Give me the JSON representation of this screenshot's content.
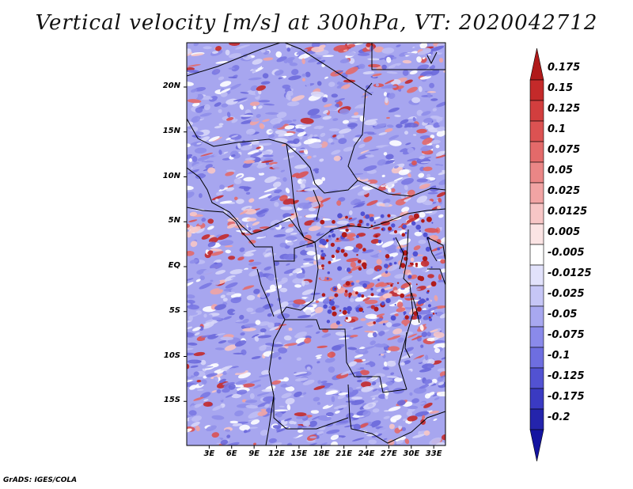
{
  "title": "Vertical velocity [m/s] at 300hPa, VT: 2020042712",
  "credit": "GrADS: IGES/COLA",
  "map": {
    "lat_range": [
      -20,
      25
    ],
    "lon_range": [
      0,
      35
    ],
    "lat_ticks": [
      {
        "value": 20,
        "label": "20N"
      },
      {
        "value": 15,
        "label": "15N"
      },
      {
        "value": 10,
        "label": "10N"
      },
      {
        "value": 5,
        "label": "5N"
      },
      {
        "value": 0,
        "label": "EQ"
      },
      {
        "value": -5,
        "label": "5S"
      },
      {
        "value": -10,
        "label": "10S"
      },
      {
        "value": -15,
        "label": "15S"
      }
    ],
    "lon_ticks": [
      {
        "value": 3,
        "label": "3E"
      },
      {
        "value": 6,
        "label": "6E"
      },
      {
        "value": 9,
        "label": "9E"
      },
      {
        "value": 12,
        "label": "12E"
      },
      {
        "value": 15,
        "label": "15E"
      },
      {
        "value": 18,
        "label": "18E"
      },
      {
        "value": 21,
        "label": "21E"
      },
      {
        "value": 24,
        "label": "24E"
      },
      {
        "value": 27,
        "label": "27E"
      },
      {
        "value": 30,
        "label": "30E"
      },
      {
        "value": 33,
        "label": "33E"
      }
    ]
  },
  "colorbar": {
    "labels": [
      "0.175",
      "0.15",
      "0.125",
      "0.1",
      "0.075",
      "0.05",
      "0.025",
      "0.0125",
      "0.005",
      "-0.005",
      "-0.0125",
      "-0.025",
      "-0.05",
      "-0.075",
      "-0.1",
      "-0.125",
      "-0.175",
      "-0.2"
    ],
    "colors": [
      "#b01a1a",
      "#c42a2a",
      "#d23e3e",
      "#dc5252",
      "#e36a6a",
      "#ea8686",
      "#f1a4a4",
      "#f7c6c6",
      "#fbe4e4",
      "#ffffff",
      "#e2e2fb",
      "#c6c6f6",
      "#a8a8f0",
      "#8a8aea",
      "#6e6ee0",
      "#5252d2",
      "#3a3ac2",
      "#2424ac",
      "#1414a0"
    ]
  }
}
